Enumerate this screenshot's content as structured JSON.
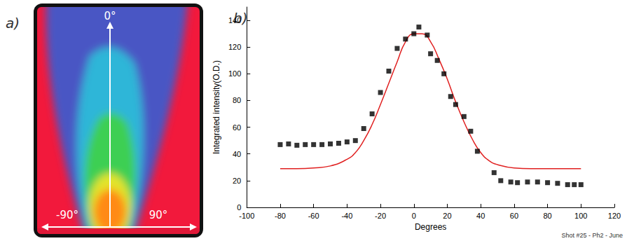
{
  "panel_a": {
    "label": "a)",
    "top_label": "0°",
    "left_label": "-90°",
    "right_label": "90°"
  },
  "chart_data": {
    "type": "scatter",
    "panel_label": "b)",
    "x_label": "Degrees",
    "y_label": "Integrated intensity(O.D.)",
    "annotations": [
      "Shot #25 - Ph2 - June"
    ],
    "xlim": [
      -100,
      120
    ],
    "xticks": [
      -100,
      -80,
      -60,
      -40,
      -20,
      0,
      20,
      40,
      60,
      80,
      100,
      120
    ],
    "ylim": [
      0,
      150
    ],
    "yticks": [
      0,
      20,
      40,
      60,
      80,
      100,
      120,
      140
    ],
    "grid": false,
    "series": [
      {
        "type": "scatter",
        "marker": "square",
        "color": "#000000",
        "x": [
          -80,
          -75,
          -70,
          -65,
          -60,
          -55,
          -50,
          -45,
          -40,
          -35,
          -30,
          -25,
          -20,
          -15,
          -10,
          -5,
          0,
          3,
          8,
          10,
          14,
          18,
          22,
          25,
          30,
          34,
          38,
          48,
          52,
          58,
          62,
          68,
          74,
          80,
          86,
          92,
          96,
          100
        ],
        "values": [
          47,
          47.5,
          46.5,
          47,
          47,
          47,
          47.5,
          48,
          49,
          50,
          59,
          70,
          86,
          102,
          119,
          126,
          130,
          135,
          129,
          115,
          110,
          100,
          83,
          77,
          68,
          57,
          42,
          26,
          20,
          19,
          18.5,
          19,
          19,
          18.5,
          18,
          17,
          17,
          17
        ]
      },
      {
        "type": "line",
        "color": "#e02020",
        "line_style": "solid",
        "x": [
          -80,
          -70,
          -60,
          -50,
          -40,
          -35,
          -30,
          -25,
          -20,
          -15,
          -10,
          -5,
          0,
          5,
          10,
          15,
          20,
          25,
          30,
          35,
          40,
          45,
          50,
          60,
          70,
          80,
          90,
          100
        ],
        "values": [
          29,
          29,
          29.5,
          31,
          36,
          41,
          50,
          62,
          77,
          93,
          109,
          124,
          130,
          130,
          124,
          111,
          96,
          79,
          64,
          51,
          41,
          35,
          32,
          29.5,
          29,
          29,
          29,
          29
        ]
      }
    ]
  }
}
